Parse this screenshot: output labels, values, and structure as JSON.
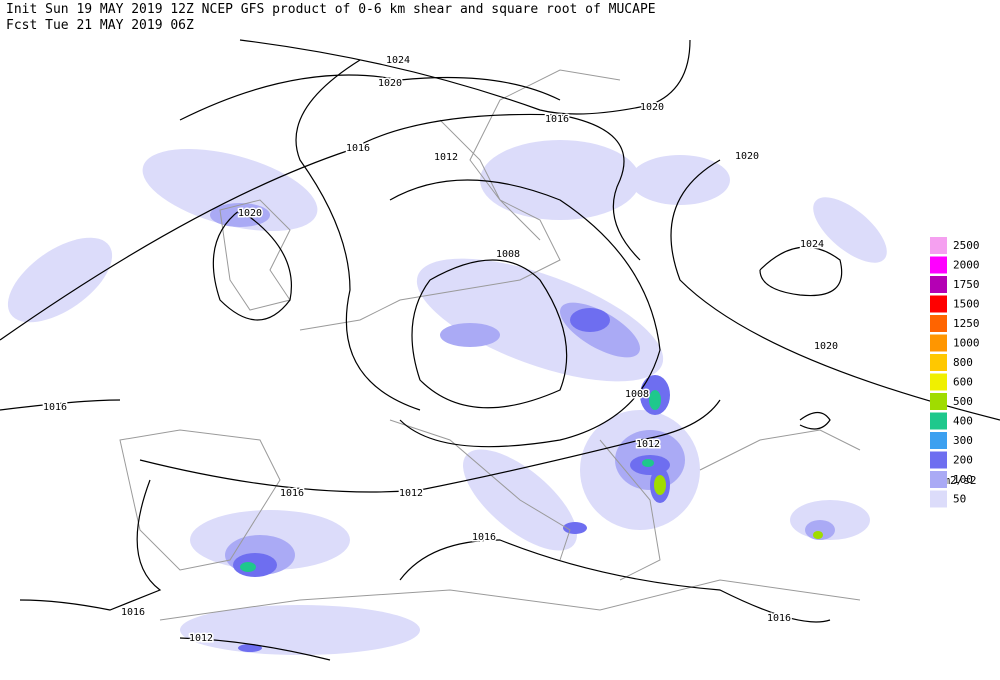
{
  "header": {
    "line1": "Init  Sun 19 MAY 2019 12Z  NCEP GFS product of 0-6 km shear and square root of MUCAPE",
    "line2": "Fcst Tue 21 MAY 2019 06Z"
  },
  "contour_labels": [
    "1024",
    "1020",
    "1016",
    "1012",
    "1020",
    "1016",
    "1020",
    "1020",
    "1024",
    "1008",
    "1020",
    "1008",
    "1016",
    "1012",
    "1016",
    "1012",
    "1016",
    "1016",
    "1016",
    "1012"
  ],
  "legend": {
    "items": [
      {
        "label": "2500",
        "color": "#f5a0f0"
      },
      {
        "label": "2000",
        "color": "#ff00ff"
      },
      {
        "label": "1750",
        "color": "#b400b4"
      },
      {
        "label": "1500",
        "color": "#ff0000"
      },
      {
        "label": "1250",
        "color": "#ff6400"
      },
      {
        "label": "1000",
        "color": "#ff9600"
      },
      {
        "label": "800",
        "color": "#ffc800"
      },
      {
        "label": "600",
        "color": "#f0f000"
      },
      {
        "label": "500",
        "color": "#a0dc00"
      },
      {
        "label": "400",
        "color": "#1ec88c"
      },
      {
        "label": "300",
        "color": "#3ca0f0"
      },
      {
        "label": "200",
        "color": "#6e6ef0"
      },
      {
        "label": "100",
        "color": "#aaaaf5"
      },
      {
        "label": "50",
        "color": "#dcdcfa"
      }
    ],
    "unit": "m2/s2"
  }
}
